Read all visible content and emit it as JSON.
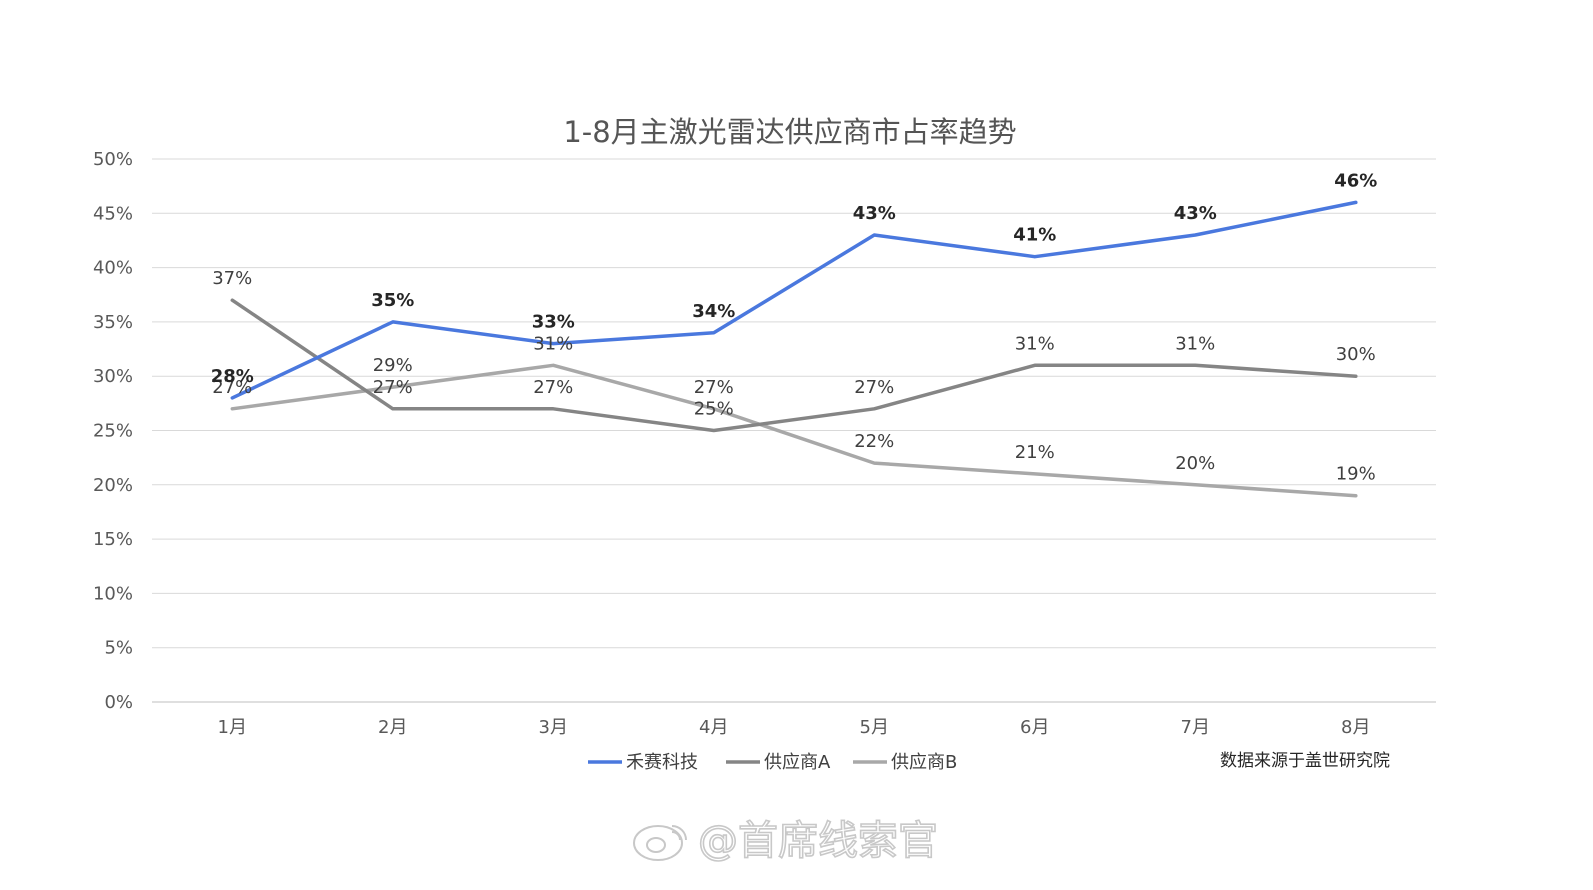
{
  "chart_data": {
    "type": "line",
    "title": "1-8月主激光雷达供应商市占率趋势",
    "categories": [
      "1月",
      "2月",
      "3月",
      "4月",
      "5月",
      "6月",
      "7月",
      "8月"
    ],
    "ylim": [
      0,
      50
    ],
    "yticks": [
      "0%",
      "5%",
      "10%",
      "15%",
      "20%",
      "25%",
      "30%",
      "35%",
      "40%",
      "45%",
      "50%"
    ],
    "grid": true,
    "legend": "bottom-center",
    "series": [
      {
        "name": "禾赛科技",
        "color": "#4a78de",
        "label_style": "bold",
        "values": [
          28,
          35,
          33,
          34,
          43,
          41,
          43,
          46
        ],
        "labels": [
          "28%",
          "35%",
          "33%",
          "34%",
          "43%",
          "41%",
          "43%",
          "46%"
        ]
      },
      {
        "name": "供应商A",
        "color": "#858585",
        "label_style": "normal",
        "values": [
          37,
          27,
          27,
          25,
          27,
          31,
          31,
          30
        ],
        "labels": [
          "37%",
          "27%",
          "27%",
          "25%",
          "27%",
          "31%",
          "31%",
          "30%"
        ]
      },
      {
        "name": "供应商B",
        "color": "#a8a8a8",
        "label_style": "normal",
        "values": [
          27,
          29,
          31,
          27,
          22,
          21,
          20,
          19
        ],
        "labels": [
          "27%",
          "29%",
          "31%",
          "27%",
          "22%",
          "21%",
          "20%",
          "19%"
        ]
      }
    ]
  },
  "source_note": "数据来源于盖世研究院",
  "watermark": "@首席线索官"
}
